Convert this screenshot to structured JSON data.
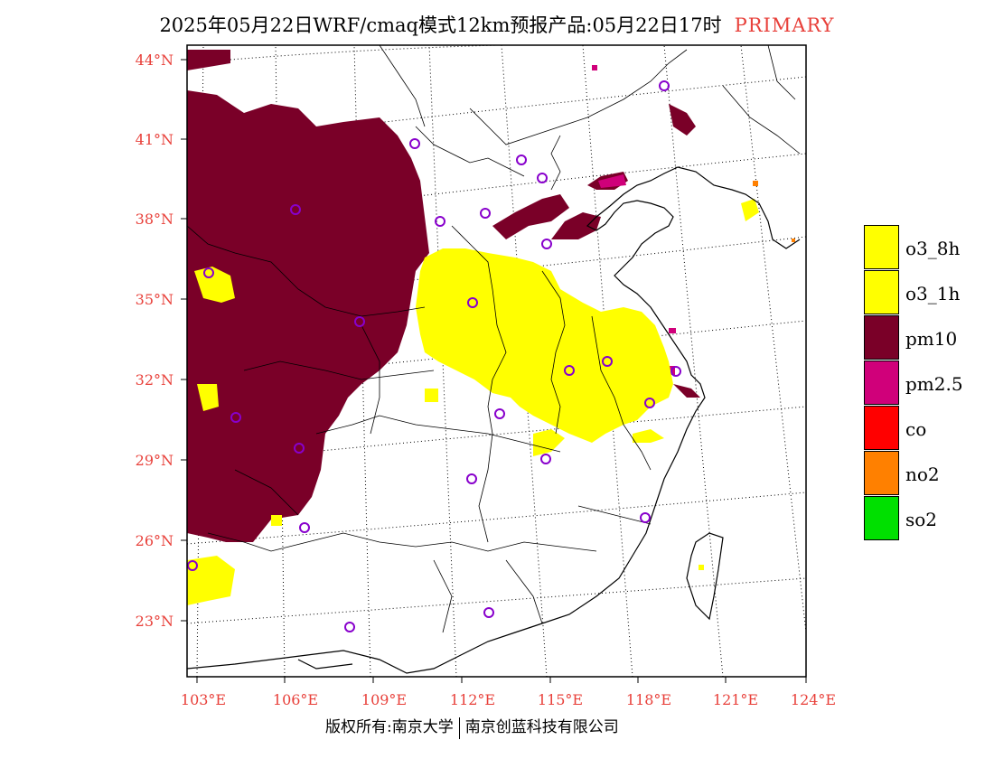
{
  "title": {
    "main": "2025年05月22日WRF/cmaq模式12km预报产品:05月22日17时",
    "tag": "PRIMARY"
  },
  "axes": {
    "lat_labels": [
      "44°N",
      "41°N",
      "38°N",
      "35°N",
      "32°N",
      "29°N",
      "26°N",
      "23°N"
    ],
    "lon_labels": [
      "103°E",
      "106°E",
      "109°E",
      "112°E",
      "115°E",
      "118°E",
      "121°E",
      "124°E"
    ]
  },
  "legend": [
    {
      "label": "o3_8h",
      "color": "#ffff00"
    },
    {
      "label": "o3_1h",
      "color": "#ffff00"
    },
    {
      "label": "pm10",
      "color": "#7a0028"
    },
    {
      "label": "pm2.5",
      "color": "#d0007a"
    },
    {
      "label": "co",
      "color": "#ff0000"
    },
    {
      "label": "no2",
      "color": "#ff8000"
    },
    {
      "label": "so2",
      "color": "#00e000"
    }
  ],
  "footer": {
    "left": "版权所有:南京大学",
    "right": "南京创蓝科技有限公司"
  },
  "colors": {
    "axis_label": "#e8403a",
    "station_marker": "#8800cc"
  }
}
